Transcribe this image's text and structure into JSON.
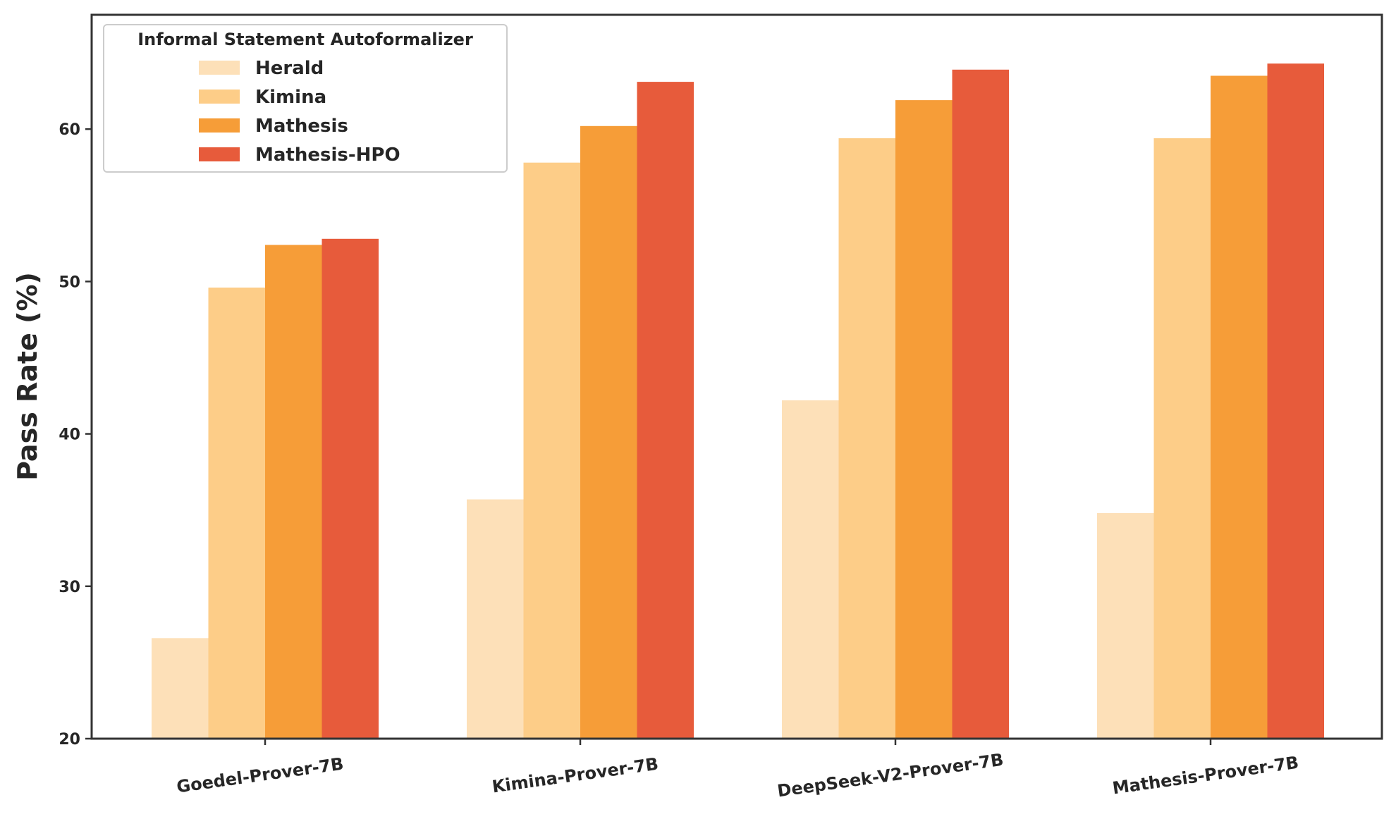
{
  "chart_data": {
    "type": "bar",
    "title": "",
    "xlabel": "",
    "ylabel": "Pass Rate (%)",
    "ylim": [
      20,
      67.5
    ],
    "yticks": [
      20,
      30,
      40,
      50,
      60
    ],
    "grid": false,
    "legend": {
      "title": "Informal Statement Autoformalizer",
      "placement": "top-left"
    },
    "categories": [
      "Goedel-Prover-7B",
      "Kimina-Prover-7B",
      "DeepSeek-V2-Prover-7B",
      "Mathesis-Prover-7B"
    ],
    "series": [
      {
        "name": "Herald",
        "color": "#fde0b8",
        "values": [
          26.6,
          35.7,
          42.2,
          34.8
        ]
      },
      {
        "name": "Kimina",
        "color": "#fdcd88",
        "values": [
          49.6,
          57.8,
          59.4,
          59.4
        ]
      },
      {
        "name": "Mathesis",
        "color": "#f69d38",
        "values": [
          52.4,
          60.2,
          61.9,
          63.5
        ]
      },
      {
        "name": "Mathesis-HPO",
        "color": "#e75b3b",
        "values": [
          52.8,
          63.1,
          63.9,
          64.3
        ]
      }
    ]
  }
}
